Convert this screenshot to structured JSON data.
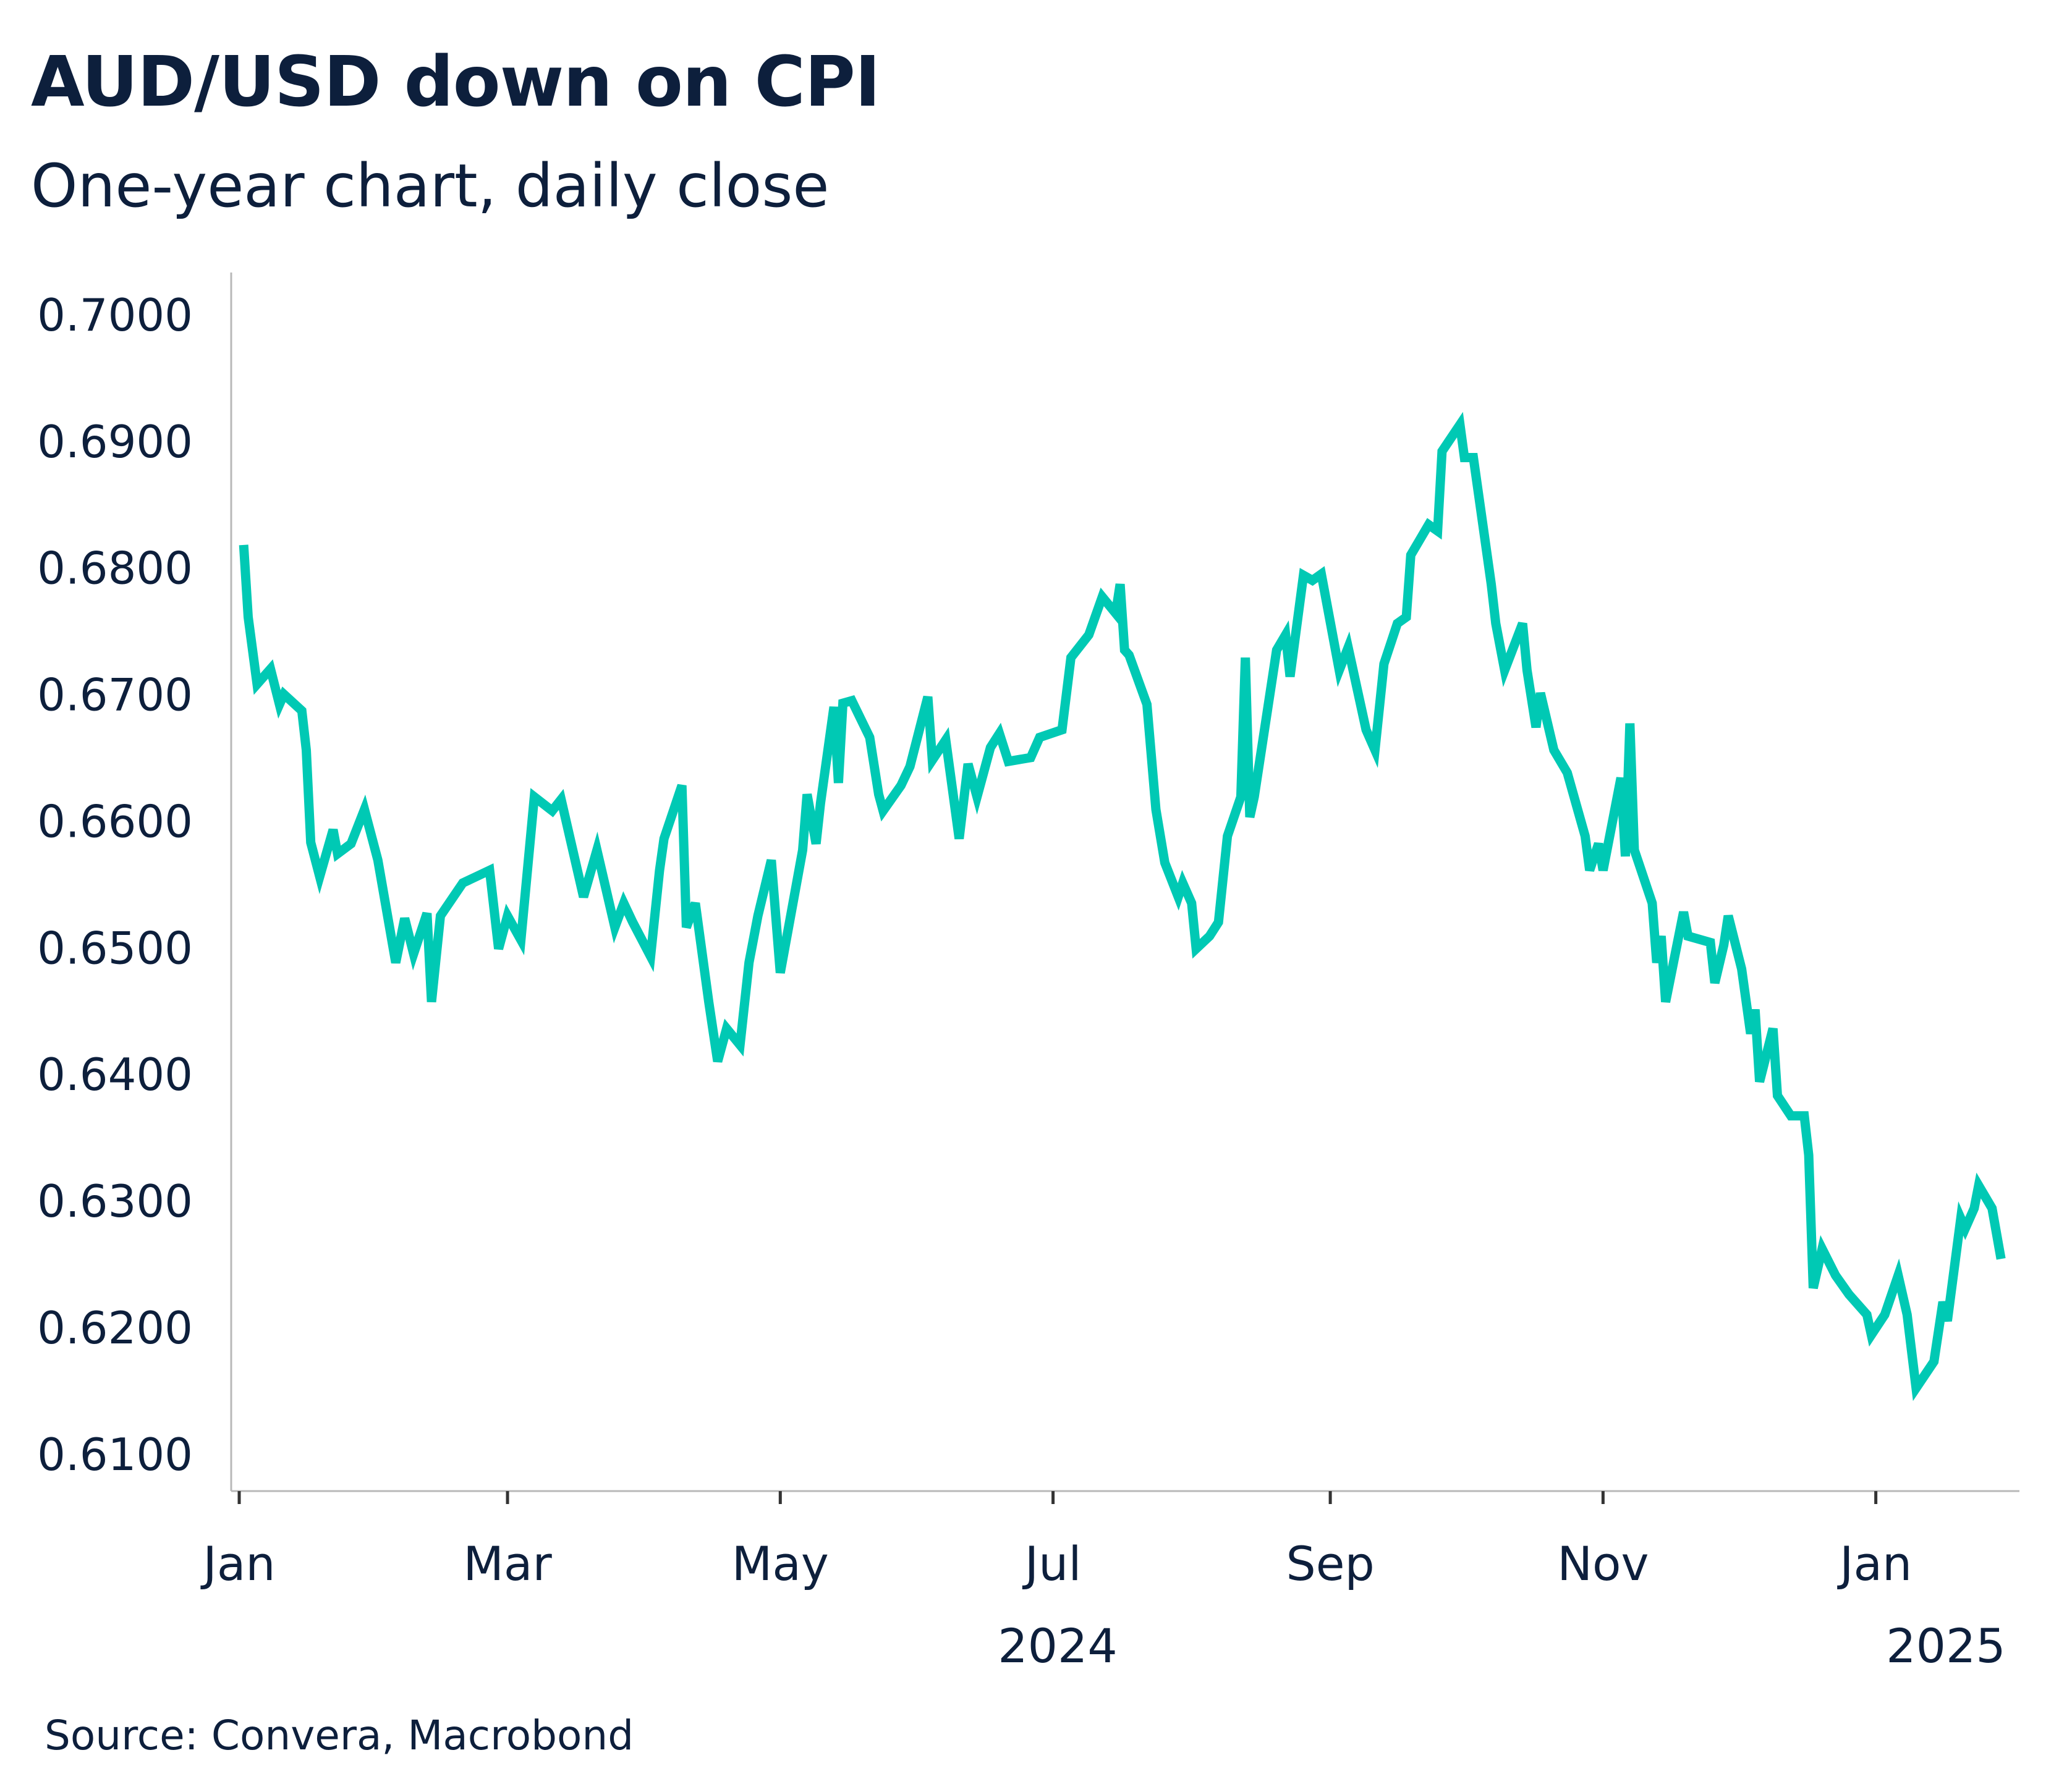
{
  "header": {
    "title": "AUD/USD down on CPI",
    "subtitle": "One-year chart, daily close"
  },
  "footer": {
    "source": "Source: Convera, Macrobond"
  },
  "colors": {
    "line": "#00c9b4",
    "text": "#0d1f3c",
    "axis": "#b8b8b8"
  },
  "chart_data": {
    "type": "line",
    "title": "AUD/USD down on CPI",
    "subtitle": "One-year chart, daily close",
    "xlabel": "",
    "ylabel": "",
    "ylim": [
      0.61,
      0.7
    ],
    "xlim": [
      "2024-01-01",
      "2025-01-31"
    ],
    "grid": false,
    "legend": "none",
    "y_ticks": [
      "0.6100",
      "0.6200",
      "0.6300",
      "0.6400",
      "0.6500",
      "0.6600",
      "0.6700",
      "0.6800",
      "0.6900",
      "0.7000"
    ],
    "x_ticks": [
      {
        "date": "2024-01-01",
        "label": "Jan"
      },
      {
        "date": "2024-03-01",
        "label": "Mar"
      },
      {
        "date": "2024-05-01",
        "label": "May"
      },
      {
        "date": "2024-07-01",
        "label": "Jul"
      },
      {
        "date": "2024-09-01",
        "label": "Sep"
      },
      {
        "date": "2024-11-01",
        "label": "Nov"
      },
      {
        "date": "2025-01-01",
        "label": "Jan"
      }
    ],
    "year_labels": [
      {
        "date": "2024-07-01",
        "label": "2024"
      },
      {
        "date": "2025-01-20",
        "label": "2025"
      }
    ],
    "series": [
      {
        "x": [
          "2024-01-02",
          "2024-01-03",
          "2024-01-05",
          "2024-01-08",
          "2024-01-10",
          "2024-01-11",
          "2024-01-15",
          "2024-01-16",
          "2024-01-17",
          "2024-01-19",
          "2024-01-22",
          "2024-01-23",
          "2024-01-26",
          "2024-01-29",
          "2024-02-01",
          "2024-02-05",
          "2024-02-07",
          "2024-02-09",
          "2024-02-12",
          "2024-02-13",
          "2024-02-15",
          "2024-02-20",
          "2024-02-26",
          "2024-02-28",
          "2024-03-01",
          "2024-03-04",
          "2024-03-07",
          "2024-03-11",
          "2024-03-13",
          "2024-03-18",
          "2024-03-21",
          "2024-03-25",
          "2024-03-27",
          "2024-03-29",
          "2024-04-02",
          "2024-04-04",
          "2024-04-05",
          "2024-04-09",
          "2024-04-10",
          "2024-04-12",
          "2024-04-15",
          "2024-04-17",
          "2024-04-19",
          "2024-04-22",
          "2024-04-24",
          "2024-04-26",
          "2024-04-29",
          "2024-05-01",
          "2024-05-06",
          "2024-05-07",
          "2024-05-09",
          "2024-05-10",
          "2024-05-13",
          "2024-05-14",
          "2024-05-15",
          "2024-05-17",
          "2024-05-21",
          "2024-05-23",
          "2024-05-24",
          "2024-05-28",
          "2024-05-30",
          "2024-06-03",
          "2024-06-04",
          "2024-06-07",
          "2024-06-10",
          "2024-06-12",
          "2024-06-14",
          "2024-06-17",
          "2024-06-19",
          "2024-06-21",
          "2024-06-26",
          "2024-06-28",
          "2024-07-03",
          "2024-07-05",
          "2024-07-09",
          "2024-07-12",
          "2024-07-15",
          "2024-07-16",
          "2024-07-17",
          "2024-07-18",
          "2024-07-22",
          "2024-07-24",
          "2024-07-26",
          "2024-07-29",
          "2024-07-30",
          "2024-08-01",
          "2024-08-02",
          "2024-08-05",
          "2024-08-07",
          "2024-08-09",
          "2024-08-12",
          "2024-08-13",
          "2024-08-14",
          "2024-08-15",
          "2024-08-20",
          "2024-08-22",
          "2024-08-23",
          "2024-08-26",
          "2024-08-28",
          "2024-08-30",
          "2024-09-03",
          "2024-09-05",
          "2024-09-09",
          "2024-09-11",
          "2024-09-13",
          "2024-09-16",
          "2024-09-18",
          "2024-09-19",
          "2024-09-23",
          "2024-09-25",
          "2024-09-26",
          "2024-09-30",
          "2024-10-01",
          "2024-10-03",
          "2024-10-07",
          "2024-10-08",
          "2024-10-10",
          "2024-10-14",
          "2024-10-15",
          "2024-10-17",
          "2024-10-18",
          "2024-10-21",
          "2024-10-24",
          "2024-10-28",
          "2024-10-29",
          "2024-10-31",
          "2024-11-01",
          "2024-11-05",
          "2024-11-06",
          "2024-11-07",
          "2024-11-08",
          "2024-11-12",
          "2024-11-13",
          "2024-11-14",
          "2024-11-15",
          "2024-11-19",
          "2024-11-20",
          "2024-11-25",
          "2024-11-26",
          "2024-11-28",
          "2024-11-29",
          "2024-12-02",
          "2024-12-04",
          "2024-12-05",
          "2024-12-06",
          "2024-12-09",
          "2024-12-10",
          "2024-12-13",
          "2024-12-16",
          "2024-12-17",
          "2024-12-18",
          "2024-12-20",
          "2024-12-23",
          "2024-12-26",
          "2024-12-30",
          "2024-12-31",
          "2025-01-03",
          "2025-01-06",
          "2025-01-08",
          "2025-01-10",
          "2025-01-14",
          "2025-01-16",
          "2025-01-17",
          "2025-01-20",
          "2025-01-21",
          "2025-01-23",
          "2025-01-24",
          "2025-01-27",
          "2025-01-29"
        ],
        "y": [
          0.6818,
          0.6761,
          0.6708,
          0.672,
          0.6692,
          0.67,
          0.6687,
          0.6656,
          0.6583,
          0.6556,
          0.6593,
          0.6574,
          0.6582,
          0.6609,
          0.6569,
          0.6488,
          0.6523,
          0.6495,
          0.6527,
          0.6457,
          0.6525,
          0.6551,
          0.6561,
          0.6499,
          0.6525,
          0.6506,
          0.6619,
          0.6608,
          0.6617,
          0.654,
          0.6577,
          0.6516,
          0.6535,
          0.652,
          0.6493,
          0.6561,
          0.6586,
          0.6628,
          0.6516,
          0.6535,
          0.6457,
          0.641,
          0.6436,
          0.6423,
          0.6488,
          0.6525,
          0.6569,
          0.648,
          0.6577,
          0.6621,
          0.6582,
          0.6614,
          0.669,
          0.663,
          0.6693,
          0.6695,
          0.6666,
          0.6621,
          0.6608,
          0.6628,
          0.6643,
          0.6698,
          0.6648,
          0.6664,
          0.6586,
          0.6645,
          0.6619,
          0.6658,
          0.6669,
          0.6647,
          0.665,
          0.6666,
          0.6672,
          0.6729,
          0.6747,
          0.6777,
          0.6764,
          0.6787,
          0.6735,
          0.6731,
          0.6692,
          0.6609,
          0.6567,
          0.654,
          0.6551,
          0.6535,
          0.6499,
          0.6509,
          0.652,
          0.6588,
          0.6619,
          0.6729,
          0.6603,
          0.6619,
          0.6735,
          0.6747,
          0.6714,
          0.6794,
          0.679,
          0.6795,
          0.6719,
          0.6737,
          0.6672,
          0.6656,
          0.6724,
          0.6756,
          0.6761,
          0.681,
          0.6834,
          0.6829,
          0.6892,
          0.6913,
          0.6887,
          0.6887,
          0.6787,
          0.6756,
          0.6719,
          0.6756,
          0.6719,
          0.6674,
          0.6701,
          0.6656,
          0.6638,
          0.6588,
          0.6561,
          0.6582,
          0.6561,
          0.6634,
          0.6572,
          0.6677,
          0.6577,
          0.6535,
          0.6488,
          0.6509,
          0.6457,
          0.6528,
          0.6509,
          0.6504,
          0.6472,
          0.6502,
          0.6525,
          0.6483,
          0.6432,
          0.6451,
          0.6394,
          0.6436,
          0.6383,
          0.6367,
          0.6367,
          0.6336,
          0.6231,
          0.6262,
          0.6241,
          0.6226,
          0.621,
          0.6194,
          0.621,
          0.6241,
          0.621,
          0.6152,
          0.6173,
          0.622,
          0.6205,
          0.6286,
          0.6278,
          0.6294,
          0.6312,
          0.6294,
          0.6254
        ]
      }
    ]
  }
}
